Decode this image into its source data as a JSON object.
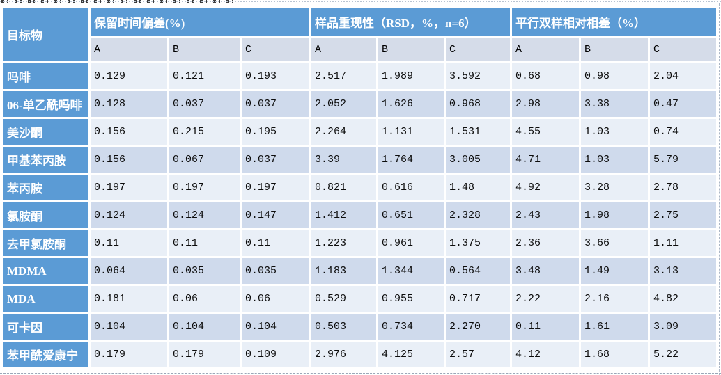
{
  "table": {
    "corner_header": "目标物",
    "column_groups": [
      {
        "label": "保留时间偏差(%)",
        "subcolumns": [
          "A",
          "B",
          "C"
        ]
      },
      {
        "label": "样品重现性（RSD，%，n=6）",
        "subcolumns": [
          "A",
          "B",
          "C"
        ]
      },
      {
        "label": "平行双样相对相差（%）",
        "subcolumns": [
          "A",
          "B",
          "C"
        ]
      }
    ],
    "rows": [
      {
        "name": "吗啡",
        "values": [
          "0.129",
          "0.121",
          "0.193",
          "2.517",
          "1.989",
          "3.592",
          "0.68",
          "0.98",
          "2.04"
        ]
      },
      {
        "name": "06-单乙酰吗啡",
        "values": [
          "0.128",
          "0.037",
          "0.037",
          "2.052",
          "1.626",
          "0.968",
          "2.98",
          "3.38",
          "0.47"
        ]
      },
      {
        "name": "美沙酮",
        "values": [
          "0.156",
          "0.215",
          "0.195",
          "2.264",
          "1.131",
          "1.531",
          "4.55",
          "1.03",
          "0.74"
        ]
      },
      {
        "name": "甲基苯丙胺",
        "values": [
          "0.156",
          "0.067",
          "0.037",
          "3.39",
          "1.764",
          "3.005",
          "4.71",
          "1.03",
          "5.79"
        ]
      },
      {
        "name": "苯丙胺",
        "values": [
          "0.197",
          "0.197",
          "0.197",
          "0.821",
          "0.616",
          "1.48",
          "4.92",
          "3.28",
          "2.78"
        ]
      },
      {
        "name": "氯胺酮",
        "values": [
          "0.124",
          "0.124",
          "0.147",
          "1.412",
          "0.651",
          "2.328",
          "2.43",
          "1.98",
          "2.75"
        ]
      },
      {
        "name": "去甲氯胺酮",
        "values": [
          "0.11",
          "0.11",
          "0.11",
          "1.223",
          "0.961",
          "1.375",
          "2.36",
          "3.66",
          "1.11"
        ]
      },
      {
        "name": "MDMA",
        "values": [
          "0.064",
          "0.035",
          "0.035",
          "1.183",
          "1.344",
          "0.564",
          "3.48",
          "1.49",
          "3.13"
        ]
      },
      {
        "name": "MDA",
        "values": [
          "0.181",
          "0.06",
          "0.06",
          "0.529",
          "0.955",
          "0.717",
          "2.22",
          "2.16",
          "4.82"
        ]
      },
      {
        "name": "可卡因",
        "values": [
          "0.104",
          "0.104",
          "0.104",
          "0.503",
          "0.734",
          "2.270",
          "0.11",
          "1.61",
          "3.09"
        ]
      },
      {
        "name": "苯甲酰爱康宁",
        "values": [
          "0.179",
          "0.179",
          "0.109",
          "2.976",
          "4.125",
          "2.57",
          "4.12",
          "1.68",
          "5.22"
        ]
      }
    ]
  },
  "colors": {
    "header_blue": "#5B9BD5",
    "band_light": "#E9EFF7",
    "band_dark": "#CFDAEC",
    "subheader_bg": "#D5DCE9",
    "cell_text": "#0c0c0c",
    "header_text": "#FFFFFF"
  }
}
